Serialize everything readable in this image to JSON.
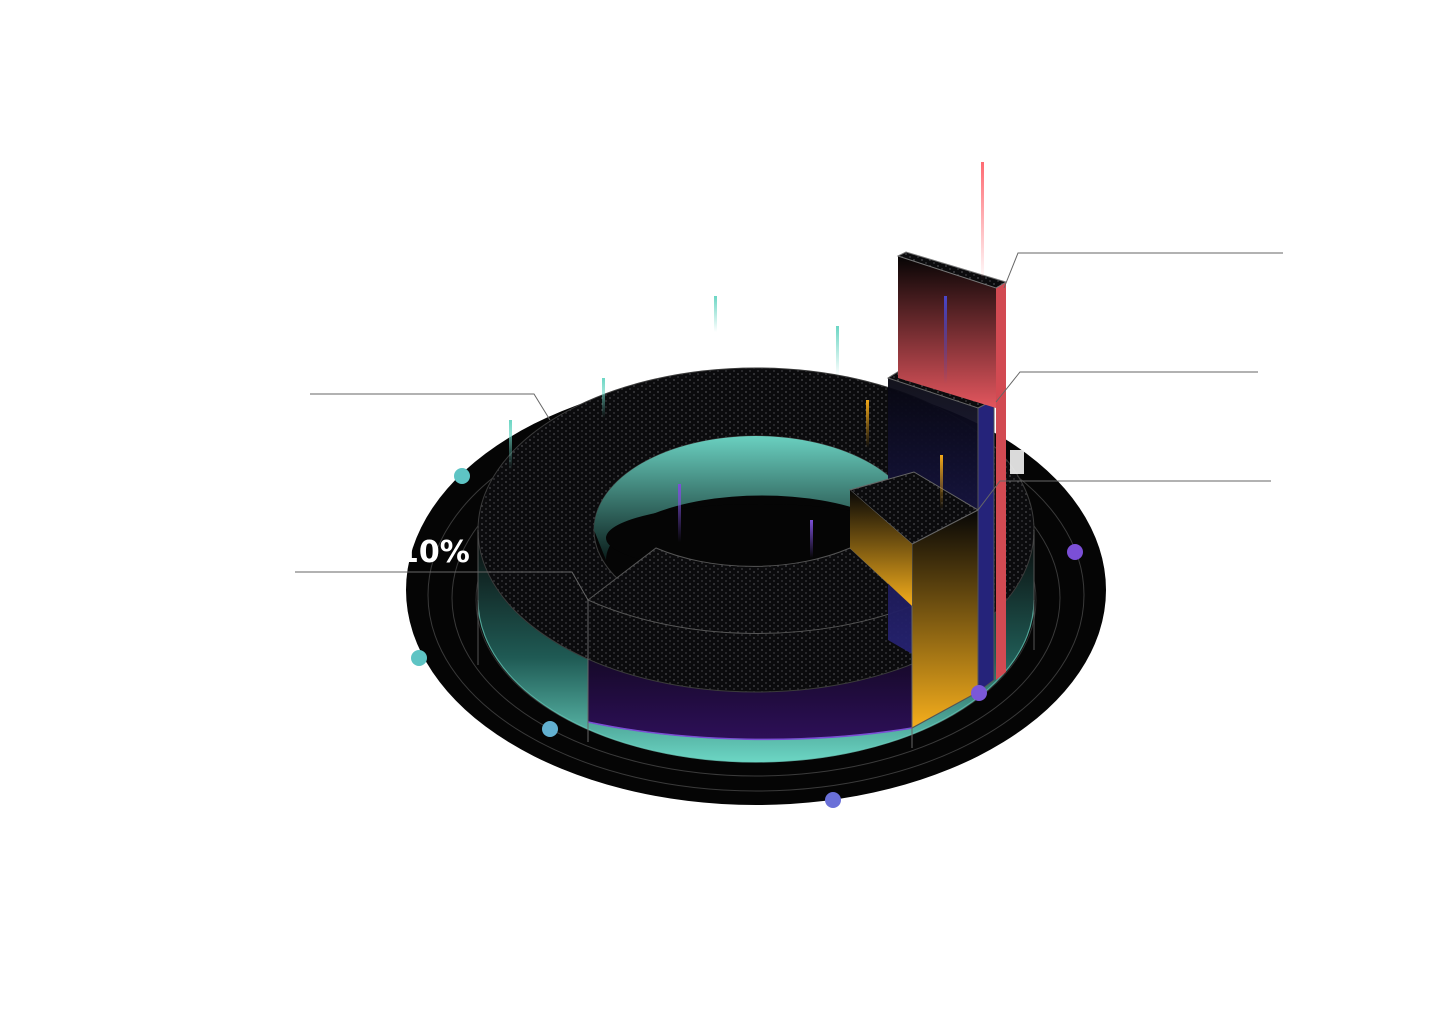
{
  "chart_data": {
    "type": "pie",
    "title": "",
    "legend": "none",
    "grid": false,
    "slices": [
      {
        "label": "",
        "value_label": "10%",
        "value": 10,
        "color": "#2a0f52"
      },
      {
        "label": "",
        "value_label": "",
        "value": 10,
        "color": "#f2a818"
      },
      {
        "label": "",
        "value_label": "",
        "value": 5,
        "color": "#26226e"
      },
      {
        "label": "",
        "value_label": "",
        "value": 3,
        "color": "#e0525a"
      },
      {
        "label": "",
        "value_label": "",
        "value": 72,
        "color": "#5ec4b4"
      }
    ]
  },
  "colors": {
    "teal": "#5ec4b4",
    "purple": "#7b4fd6",
    "orange": "#f2a818",
    "navy": "#26226e",
    "red": "#e0525a",
    "base": "#050505"
  }
}
